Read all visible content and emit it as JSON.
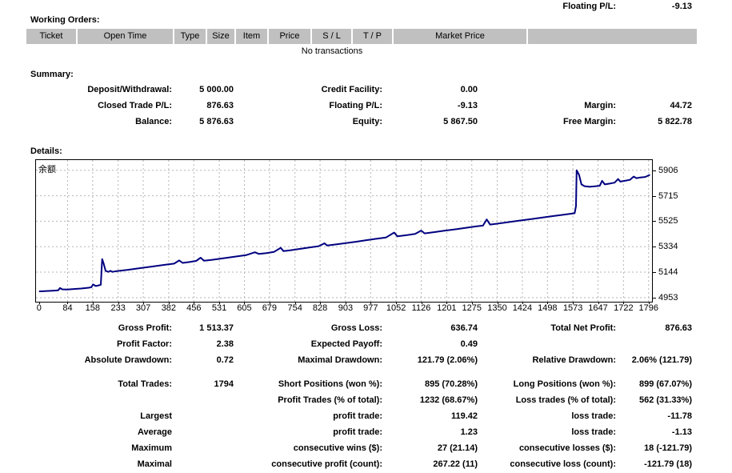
{
  "header": {
    "floating_pl_label": "Floating P/L:",
    "floating_pl_value": "-9.13"
  },
  "working_orders": {
    "title": "Working Orders:",
    "columns": [
      "Ticket",
      "Open Time",
      "Type",
      "Size",
      "Item",
      "Price",
      "S / L",
      "T / P",
      "Market Price",
      ""
    ],
    "empty_message": "No transactions"
  },
  "summary": {
    "title": "Summary:",
    "rows": [
      {
        "c1l": "Deposit/Withdrawal:",
        "c1v": "5 000.00",
        "c2l": "Credit Facility:",
        "c2v": "0.00",
        "c3l": "",
        "c3v": ""
      },
      {
        "c1l": "Closed Trade P/L:",
        "c1v": "876.63",
        "c2l": "Floating P/L:",
        "c2v": "-9.13",
        "c3l": "Margin:",
        "c3v": "44.72"
      },
      {
        "c1l": "Balance:",
        "c1v": "5 876.63",
        "c2l": "Equity:",
        "c2v": "5 867.50",
        "c3l": "Free Margin:",
        "c3v": "5 822.78"
      }
    ]
  },
  "details": {
    "title": "Details:"
  },
  "chart_data": {
    "type": "line",
    "title": "余额",
    "legend_position": "top-left",
    "grid": true,
    "x_ticks": [
      0,
      84,
      158,
      233,
      307,
      382,
      456,
      531,
      605,
      679,
      754,
      828,
      903,
      977,
      1052,
      1126,
      1201,
      1275,
      1350,
      1424,
      1498,
      1573,
      1647,
      1722,
      1796
    ],
    "y_ticks": [
      4953,
      5144,
      5334,
      5525,
      5715,
      5906
    ],
    "x_range": [
      -9,
      1806
    ],
    "y_range": [
      4923,
      5982
    ],
    "xlabel": "",
    "ylabel": "",
    "series": [
      {
        "name": "余额",
        "color": "#000080",
        "points": [
          [
            0,
            5000
          ],
          [
            22,
            5003
          ],
          [
            45,
            5006
          ],
          [
            56,
            5008
          ],
          [
            62,
            5026
          ],
          [
            68,
            5016
          ],
          [
            82,
            5014
          ],
          [
            103,
            5018
          ],
          [
            124,
            5022
          ],
          [
            146,
            5028
          ],
          [
            154,
            5031
          ],
          [
            159,
            5052
          ],
          [
            167,
            5040
          ],
          [
            175,
            5045
          ],
          [
            182,
            5050
          ],
          [
            186,
            5242
          ],
          [
            190,
            5212
          ],
          [
            196,
            5154
          ],
          [
            204,
            5146
          ],
          [
            210,
            5154
          ],
          [
            216,
            5146
          ],
          [
            229,
            5152
          ],
          [
            262,
            5162
          ],
          [
            298,
            5174
          ],
          [
            334,
            5186
          ],
          [
            368,
            5198
          ],
          [
            398,
            5208
          ],
          [
            413,
            5232
          ],
          [
            423,
            5213
          ],
          [
            443,
            5220
          ],
          [
            463,
            5228
          ],
          [
            476,
            5252
          ],
          [
            486,
            5230
          ],
          [
            508,
            5236
          ],
          [
            542,
            5248
          ],
          [
            576,
            5259
          ],
          [
            610,
            5271
          ],
          [
            636,
            5293
          ],
          [
            648,
            5280
          ],
          [
            670,
            5287
          ],
          [
            692,
            5295
          ],
          [
            712,
            5326
          ],
          [
            720,
            5302
          ],
          [
            740,
            5308
          ],
          [
            768,
            5318
          ],
          [
            796,
            5328
          ],
          [
            824,
            5338
          ],
          [
            841,
            5360
          ],
          [
            849,
            5343
          ],
          [
            877,
            5352
          ],
          [
            906,
            5362
          ],
          [
            935,
            5372
          ],
          [
            964,
            5383
          ],
          [
            993,
            5393
          ],
          [
            1022,
            5403
          ],
          [
            1046,
            5440
          ],
          [
            1056,
            5412
          ],
          [
            1082,
            5420
          ],
          [
            1108,
            5430
          ],
          [
            1126,
            5455
          ],
          [
            1136,
            5434
          ],
          [
            1163,
            5443
          ],
          [
            1194,
            5454
          ],
          [
            1225,
            5464
          ],
          [
            1256,
            5475
          ],
          [
            1287,
            5486
          ],
          [
            1308,
            5492
          ],
          [
            1319,
            5538
          ],
          [
            1329,
            5500
          ],
          [
            1354,
            5508
          ],
          [
            1386,
            5519
          ],
          [
            1418,
            5530
          ],
          [
            1450,
            5541
          ],
          [
            1482,
            5552
          ],
          [
            1514,
            5563
          ],
          [
            1546,
            5574
          ],
          [
            1570,
            5582
          ],
          [
            1578,
            5585
          ],
          [
            1582,
            5638
          ],
          [
            1584,
            5906
          ],
          [
            1591,
            5872
          ],
          [
            1598,
            5800
          ],
          [
            1607,
            5787
          ],
          [
            1622,
            5782
          ],
          [
            1638,
            5786
          ],
          [
            1652,
            5790
          ],
          [
            1659,
            5827
          ],
          [
            1667,
            5800
          ],
          [
            1681,
            5806
          ],
          [
            1696,
            5813
          ],
          [
            1706,
            5840
          ],
          [
            1713,
            5821
          ],
          [
            1726,
            5827
          ],
          [
            1741,
            5834
          ],
          [
            1752,
            5859
          ],
          [
            1760,
            5847
          ],
          [
            1772,
            5852
          ],
          [
            1786,
            5856
          ],
          [
            1800,
            5872
          ]
        ]
      }
    ]
  },
  "stats": {
    "group1": [
      {
        "c1l": "Gross Profit:",
        "c1v": "1 513.37",
        "c2l": "Gross Loss:",
        "c2v": "636.74",
        "c3l": "Total Net Profit:",
        "c3v": "876.63"
      },
      {
        "c1l": "Profit Factor:",
        "c1v": "2.38",
        "c2l": "Expected Payoff:",
        "c2v": "0.49",
        "c3l": "",
        "c3v": ""
      },
      {
        "c1l": "Absolute Drawdown:",
        "c1v": "0.72",
        "c2l": "Maximal Drawdown:",
        "c2v": "121.79 (2.06%)",
        "c3l": "Relative Drawdown:",
        "c3v": "2.06% (121.79)"
      }
    ],
    "group2": [
      {
        "c1l": "Total Trades:",
        "c1v": "1794",
        "c2l": "Short Positions (won %):",
        "c2v": "895 (70.28%)",
        "c3l": "Long Positions (won %):",
        "c3v": "899 (67.07%)"
      },
      {
        "c1l": "",
        "c1v": "",
        "c2l": "Profit Trades (% of total):",
        "c2v": "1232 (68.67%)",
        "c3l": "Loss trades (% of total):",
        "c3v": "562 (31.33%)"
      },
      {
        "c1l": "Largest",
        "c1v": "",
        "c2l": "profit trade:",
        "c2v": "119.42",
        "c3l": "loss trade:",
        "c3v": "-11.78"
      },
      {
        "c1l": "Average",
        "c1v": "",
        "c2l": "profit trade:",
        "c2v": "1.23",
        "c3l": "loss trade:",
        "c3v": "-1.13"
      },
      {
        "c1l": "Maximum",
        "c1v": "",
        "c2l": "consecutive wins ($):",
        "c2v": "27 (21.14)",
        "c3l": "consecutive losses ($):",
        "c3v": "18 (-121.79)"
      },
      {
        "c1l": "Maximal",
        "c1v": "",
        "c2l": "consecutive profit (count):",
        "c2v": "267.22 (11)",
        "c3l": "consecutive loss (count):",
        "c3v": "-121.79 (18)"
      }
    ]
  }
}
